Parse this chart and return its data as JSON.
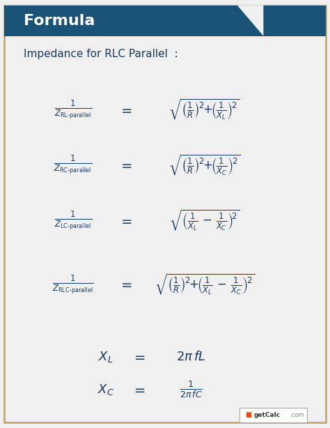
{
  "title": "Formula",
  "subtitle": "Impedance for RLC Parallel  :",
  "bg_color": "#e8e8e8",
  "header_bg": "#1a5276",
  "header_text_color": "#ffffff",
  "formula_color": "#1a3a5c",
  "body_bg": "#f0f0f0",
  "border_color": "#c8a96e",
  "watermark": "getCalc.com",
  "formulas": [
    {
      "lhs": "\\frac{1}{Z_{\\mathrm{RL\\text{-}parallel}}}",
      "rhs": "\\sqrt{\\left(\\frac{1}{R}\\right)^{\\!2}\\!+\\!\\left(\\frac{1}{X_L}\\right)^{\\!2}}"
    },
    {
      "lhs": "\\frac{1}{Z_{\\mathrm{RC\\text{-}parallel}}}",
      "rhs": "\\sqrt{\\left(\\frac{1}{R}\\right)^{\\!2}\\!+\\!\\left(\\frac{1}{X_C}\\right)^{\\!2}}"
    },
    {
      "lhs": "\\frac{1}{Z_{\\mathrm{LC\\text{-}parallel}}}",
      "rhs": "\\sqrt{\\left(\\frac{1}{X_L}\\,-\\,\\frac{1}{X_C}\\right)^{\\!2}}"
    },
    {
      "lhs": "\\frac{1}{Z_{\\mathrm{RLC\\text{-}parallel}}}",
      "rhs": "\\sqrt{\\left(\\frac{1}{R}\\right)^{\\!2}\\!+\\!\\left(\\frac{1}{X_L}\\,-\\,\\frac{1}{X_C}\\right)^{\\!2}}"
    }
  ],
  "extra_formulas": [
    {
      "lhs": "X_L",
      "eq": "=",
      "rhs": "2\\pi\\, fL"
    },
    {
      "lhs": "X_C",
      "eq": "=",
      "rhs": "\\frac{1}{2\\pi\\, fC}"
    }
  ]
}
